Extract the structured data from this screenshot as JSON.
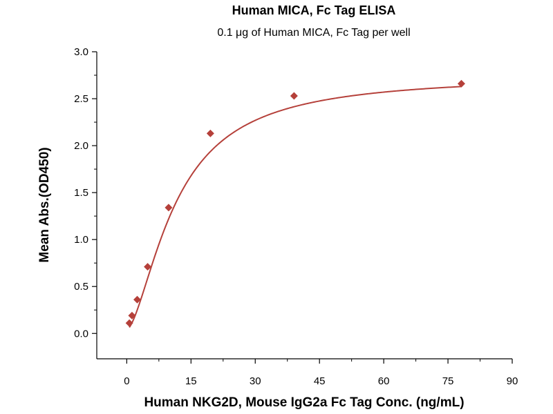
{
  "chart_data": {
    "type": "scatter",
    "title": "Human MICA, Fc Tag ELISA",
    "subtitle": "0.1 μg of Human MICA, Fc Tag per well",
    "xlabel": "Human NKG2D, Mouse IgG2a Fc Tag Conc. (ng/mL)",
    "ylabel": "Mean Abs.(OD450)",
    "xlim": [
      -7,
      90
    ],
    "ylim": [
      -0.27,
      3.0
    ],
    "xticks": [
      0,
      15,
      30,
      45,
      60,
      75,
      90
    ],
    "yticks": [
      0.0,
      0.5,
      1.0,
      1.5,
      2.0,
      2.5,
      3.0
    ],
    "x_tick_labels": [
      "0",
      "15",
      "30",
      "45",
      "60",
      "75",
      "90"
    ],
    "y_tick_labels": [
      "0.0",
      "0.5",
      "1.0",
      "1.5",
      "2.0",
      "2.5",
      "3.0"
    ],
    "grid": false,
    "legend": "none",
    "marker_color": "#b5403a",
    "line_color": "#b5403a",
    "series": [
      {
        "x": [
          0.61,
          1.22,
          2.44,
          4.88,
          9.77,
          19.53,
          39.06,
          78.13
        ],
        "y": [
          0.11,
          0.19,
          0.36,
          0.71,
          1.34,
          2.13,
          2.53,
          2.66
        ],
        "fit": "sigmoidal"
      }
    ]
  }
}
